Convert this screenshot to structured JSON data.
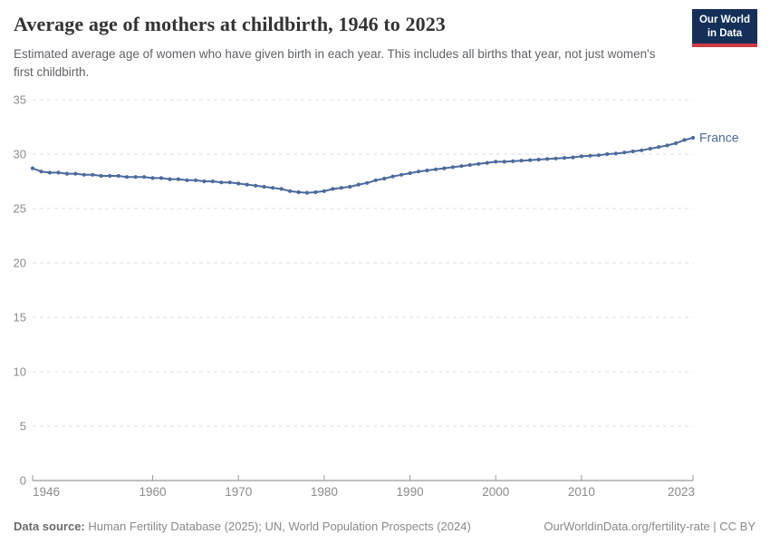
{
  "header": {
    "title": "Average age of mothers at childbirth, 1946 to 2023",
    "subtitle": "Estimated average age of women who have given birth in each year. This includes all births that year, not just women's first childbirth.",
    "logo": {
      "line1": "Our World",
      "line2": "in Data",
      "bg_color": "#143059",
      "stripe_color": "#cf3b45"
    }
  },
  "chart_data": {
    "type": "line",
    "title": "Average age of mothers at childbirth, 1946 to 2023",
    "x_range": [
      1946,
      2023
    ],
    "ylim": [
      0,
      35
    ],
    "yticks": [
      0,
      5,
      10,
      15,
      20,
      25,
      30,
      35
    ],
    "xticks": [
      1946,
      1960,
      1970,
      1980,
      1990,
      2000,
      2010,
      2023
    ],
    "grid": "dashed-horizontal",
    "legend_position": "end-of-line-label",
    "colors": {
      "grid": "#dcdcdc",
      "axis": "#9a9a9a",
      "labels": "#8c8c8c"
    },
    "series": [
      {
        "name": "France",
        "color": "#4c6a9c",
        "x_start": 1946,
        "values": [
          28.7,
          28.4,
          28.3,
          28.3,
          28.2,
          28.2,
          28.1,
          28.1,
          28.0,
          28.0,
          28.0,
          27.9,
          27.9,
          27.9,
          27.8,
          27.8,
          27.7,
          27.7,
          27.6,
          27.6,
          27.5,
          27.5,
          27.4,
          27.4,
          27.3,
          27.2,
          27.1,
          27.0,
          26.9,
          26.8,
          26.6,
          26.5,
          26.45,
          26.5,
          26.6,
          26.8,
          26.9,
          27.0,
          27.2,
          27.35,
          27.6,
          27.75,
          27.95,
          28.1,
          28.25,
          28.4,
          28.5,
          28.6,
          28.7,
          28.8,
          28.9,
          29.0,
          29.1,
          29.2,
          29.3,
          29.3,
          29.35,
          29.4,
          29.45,
          29.5,
          29.55,
          29.6,
          29.65,
          29.7,
          29.8,
          29.85,
          29.9,
          30.0,
          30.05,
          30.15,
          30.25,
          30.35,
          30.5,
          30.65,
          30.8,
          31.0,
          31.3,
          31.5
        ]
      }
    ]
  },
  "footer": {
    "source_label": "Data source:",
    "source_text": " Human Fertility Database (2025); UN, World Population Prospects (2024)",
    "link_text": "OurWorldinData.org/fertility-rate | CC BY"
  }
}
